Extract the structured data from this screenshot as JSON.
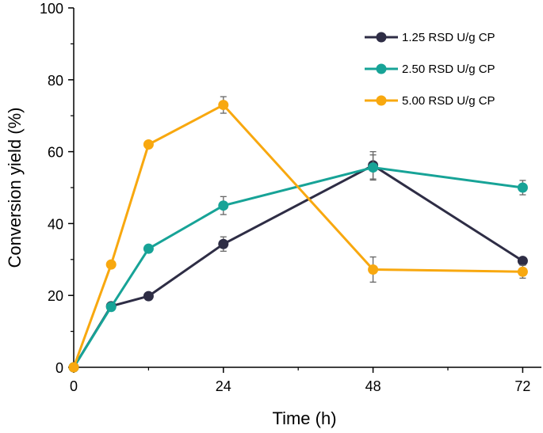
{
  "chart_data": {
    "type": "line",
    "xlabel": "Time (h)",
    "ylabel": "Conversion yield (%)",
    "xlim": [
      0,
      75
    ],
    "ylim": [
      0,
      100
    ],
    "x_ticks": [
      0,
      24,
      48,
      72
    ],
    "x_ticks_labels": [
      "0",
      "24",
      "48",
      "72"
    ],
    "x_minor_ticks": [
      12,
      36,
      60
    ],
    "y_ticks": [
      0,
      20,
      40,
      60,
      80,
      100
    ],
    "y_ticks_labels": [
      "0",
      "20",
      "40",
      "60",
      "80",
      "100"
    ],
    "y_minor_ticks": [
      10,
      30,
      50,
      70,
      90
    ],
    "grid": false,
    "legend_position": "top-right",
    "series": [
      {
        "name": "1.25 RSD U/g CP",
        "color": "#2e2d45",
        "x": [
          0,
          6,
          12,
          24,
          48,
          72
        ],
        "values": [
          0,
          17,
          19.8,
          34.3,
          56.2,
          29.6
        ],
        "errors": [
          0,
          0,
          0,
          2,
          3.8,
          0
        ]
      },
      {
        "name": "2.50 RSD U/g CP",
        "color": "#17a397",
        "x": [
          0,
          6,
          12,
          24,
          48,
          72
        ],
        "values": [
          0,
          16.8,
          33,
          45,
          55.6,
          50
        ],
        "errors": [
          0,
          0,
          0,
          2.5,
          3.5,
          2
        ]
      },
      {
        "name": "5.00 RSD U/g CP",
        "color": "#f8a80f",
        "x": [
          0,
          6,
          12,
          24,
          48,
          72
        ],
        "values": [
          0,
          28.6,
          62,
          73,
          27.2,
          26.6
        ],
        "errors": [
          0,
          0,
          0,
          2.3,
          3.5,
          1.8
        ]
      }
    ]
  }
}
